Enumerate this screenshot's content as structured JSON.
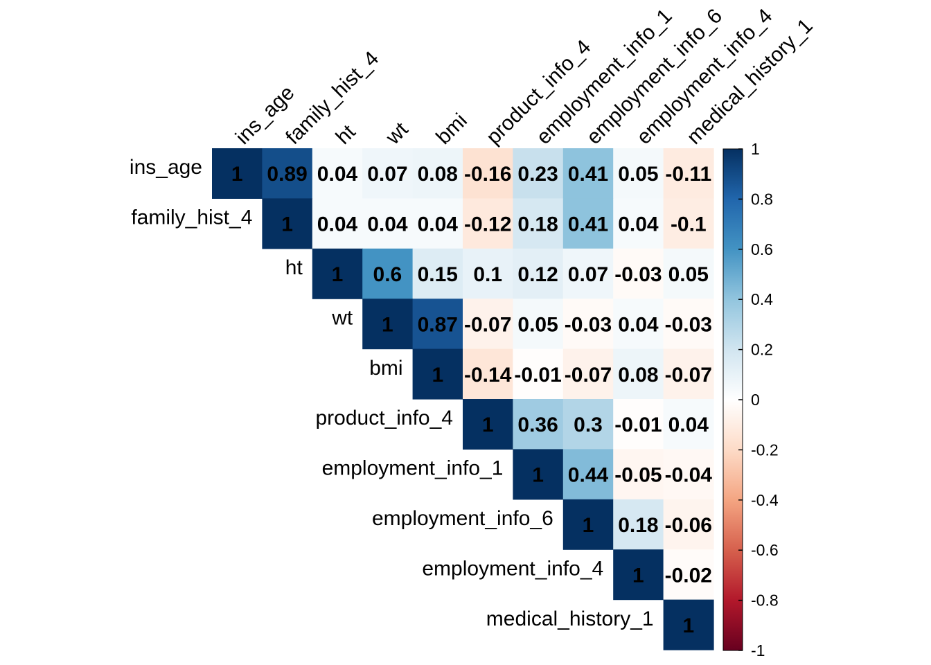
{
  "chart_data": {
    "type": "heatmap",
    "title": "",
    "variables": [
      "ins_age",
      "family_hist_4",
      "ht",
      "wt",
      "bmi",
      "product_info_4",
      "employment_info_1",
      "employment_info_6",
      "employment_info_4",
      "medical_history_1"
    ],
    "matrix": [
      [
        1,
        0.89,
        0.04,
        0.07,
        0.08,
        -0.16,
        0.23,
        0.41,
        0.05,
        -0.11
      ],
      [
        null,
        1,
        0.04,
        0.04,
        0.04,
        -0.12,
        0.18,
        0.41,
        0.04,
        -0.1
      ],
      [
        null,
        null,
        1,
        0.6,
        0.15,
        0.1,
        0.12,
        0.07,
        -0.03,
        0.05
      ],
      [
        null,
        null,
        null,
        1,
        0.87,
        -0.07,
        0.05,
        -0.03,
        0.04,
        -0.03
      ],
      [
        null,
        null,
        null,
        null,
        1,
        -0.14,
        -0.01,
        -0.07,
        0.08,
        -0.07
      ],
      [
        null,
        null,
        null,
        null,
        null,
        1,
        0.36,
        0.3,
        -0.01,
        0.04
      ],
      [
        null,
        null,
        null,
        null,
        null,
        null,
        1,
        0.44,
        -0.05,
        -0.04
      ],
      [
        null,
        null,
        null,
        null,
        null,
        null,
        null,
        1,
        0.18,
        -0.06
      ],
      [
        null,
        null,
        null,
        null,
        null,
        null,
        null,
        null,
        1,
        -0.02
      ],
      [
        null,
        null,
        null,
        null,
        null,
        null,
        null,
        null,
        null,
        1
      ]
    ],
    "shape": "upper-triangle",
    "color_scale": {
      "range": [
        -1,
        1
      ],
      "low_color": "#67001F",
      "mid_color": "#FFFFFF",
      "high_color": "#053061",
      "ticks": [
        "1",
        "0.8",
        "0.6",
        "0.4",
        "0.2",
        "0",
        "-0.2",
        "-0.4",
        "-0.6",
        "-0.8",
        "-1"
      ]
    },
    "legend_position": "right"
  }
}
